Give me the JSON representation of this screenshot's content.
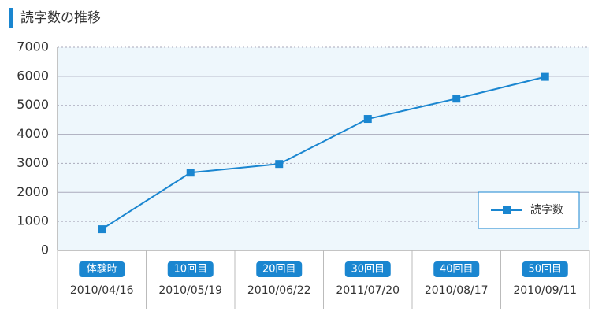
{
  "chart_data": {
    "type": "line",
    "title": "読字数の推移",
    "categories": [
      "体験時",
      "10回目",
      "20回目",
      "30回目",
      "40回目",
      "50回目"
    ],
    "category_dates": [
      "2010/04/16",
      "2010/05/19",
      "2010/06/22",
      "2011/07/20",
      "2010/08/17",
      "2010/09/11"
    ],
    "series": [
      {
        "name": "読字数",
        "color": "#1a86d0",
        "values": [
          730,
          2680,
          2980,
          4530,
          5230,
          5980
        ]
      }
    ],
    "ylim": [
      0,
      7000
    ],
    "yticks": [
      0,
      1000,
      2000,
      3000,
      4000,
      5000,
      6000,
      7000
    ],
    "grid": true,
    "legend": "lower right"
  }
}
